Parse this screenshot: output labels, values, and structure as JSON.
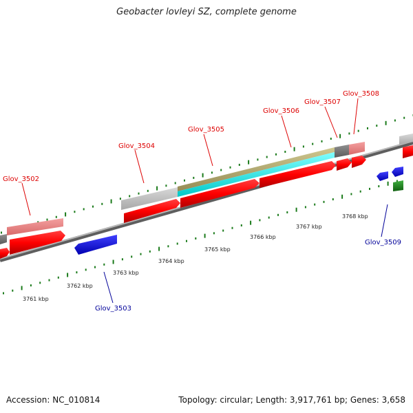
{
  "title": "Geobacter lovleyi SZ, complete genome",
  "footer": {
    "accession": "Accession: NC_010814",
    "topology": "Topology: circular; Length: 3,917,761 bp; Genes: 3,658"
  },
  "ticks": [
    "3761 kbp",
    "3762 kbp",
    "3763 kbp",
    "3764 kbp",
    "3765 kbp",
    "3766 kbp",
    "3767 kbp",
    "3768 kbp"
  ],
  "genes": [
    {
      "name": "Glov_3502",
      "strand": "forward",
      "color": "#dd0000"
    },
    {
      "name": "Glov_3503",
      "strand": "reverse",
      "color": "#000099"
    },
    {
      "name": "Glov_3504",
      "strand": "forward",
      "color": "#dd0000"
    },
    {
      "name": "Glov_3505",
      "strand": "forward",
      "color": "#dd0000"
    },
    {
      "name": "Glov_3506",
      "strand": "forward",
      "color": "#dd0000"
    },
    {
      "name": "Glov_3507",
      "strand": "forward",
      "color": "#dd0000"
    },
    {
      "name": "Glov_3508",
      "strand": "forward",
      "color": "#dd0000"
    },
    {
      "name": "Glov_3509",
      "strand": "reverse",
      "color": "#000099"
    }
  ],
  "colors": {
    "cds": "#ff0000",
    "gene_fwd_dark": "#808080",
    "gene_fwd_pink": "#f08080",
    "gene_fwd_light": "#c0c0c0",
    "rna_cyan": "#00ffff",
    "feature_olive": "#b0a870",
    "reverse_cds": "#0000ff",
    "other_green": "#228b22",
    "tick": "#1a7a1a",
    "backbone": "#888888"
  }
}
